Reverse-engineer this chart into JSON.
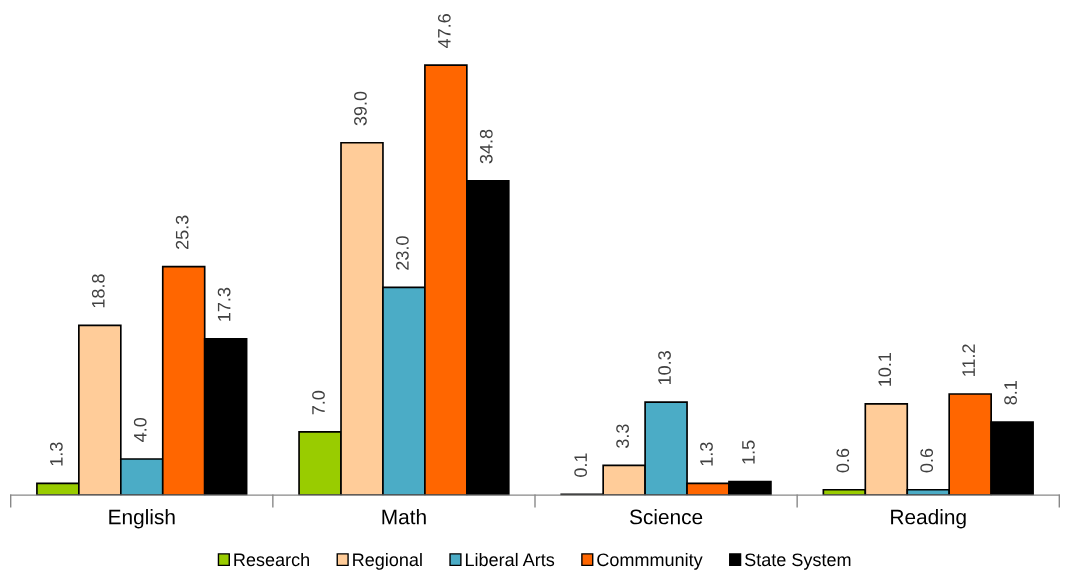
{
  "chart_data": {
    "type": "bar",
    "categories": [
      "English",
      "Math",
      "Science",
      "Reading"
    ],
    "series": [
      {
        "name": "Research",
        "color": "#99cc00",
        "values": [
          1.3,
          7,
          0.1,
          0.6
        ],
        "value_labels": [
          "1.3",
          "7.0",
          "0.1",
          "0.6"
        ]
      },
      {
        "name": "Regional",
        "color": "#ffcc99",
        "values": [
          18.8,
          39,
          3.3,
          10.1
        ],
        "value_labels": [
          "18.8",
          "39.0",
          "3.3",
          "10.1"
        ]
      },
      {
        "name": "Liberal Arts",
        "color": "#4bacc6",
        "values": [
          4,
          23,
          10.3,
          0.6
        ],
        "value_labels": [
          "4.0",
          "23.0",
          "10.3",
          "0.6"
        ]
      },
      {
        "name": "Commmunity",
        "color": "#ff6600",
        "values": [
          25.3,
          47.6,
          1.3,
          11.2
        ],
        "value_labels": [
          "25.3",
          "47.6",
          "1.3",
          "11.2"
        ]
      },
      {
        "name": "State System",
        "color": "#000000",
        "values": [
          17.3,
          34.8,
          1.5,
          8.1
        ],
        "value_labels": [
          "17.3",
          "34.8",
          "1.5",
          "8.1"
        ]
      }
    ],
    "legend": "bottom",
    "grid": false
  }
}
